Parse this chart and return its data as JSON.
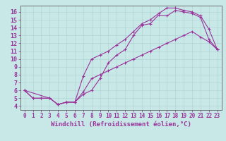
{
  "title": "",
  "xlabel": "Windchill (Refroidissement éolien,°C)",
  "background_color": "#c8e8e8",
  "line_color": "#993399",
  "xlim": [
    -0.5,
    23.5
  ],
  "ylim": [
    3.5,
    16.8
  ],
  "xticks": [
    0,
    1,
    2,
    3,
    4,
    5,
    6,
    7,
    8,
    9,
    10,
    11,
    12,
    13,
    14,
    15,
    16,
    17,
    18,
    19,
    20,
    21,
    22,
    23
  ],
  "yticks": [
    4,
    5,
    6,
    7,
    8,
    9,
    10,
    11,
    12,
    13,
    14,
    15,
    16
  ],
  "curve1_x": [
    0,
    1,
    2,
    3,
    4,
    5,
    6,
    7,
    8,
    9,
    10,
    11,
    12,
    13,
    14,
    15,
    16,
    17,
    18,
    19,
    20,
    21,
    22,
    23
  ],
  "curve1_y": [
    6.0,
    5.0,
    5.0,
    5.0,
    4.2,
    4.5,
    4.5,
    5.5,
    6.0,
    7.5,
    9.5,
    10.5,
    11.2,
    13.0,
    14.3,
    14.5,
    15.6,
    15.5,
    16.2,
    16.0,
    15.8,
    15.3,
    12.5,
    11.2
  ],
  "curve2_x": [
    0,
    3,
    4,
    5,
    6,
    7,
    8,
    9,
    10,
    11,
    12,
    13,
    14,
    15,
    16,
    17,
    18,
    19,
    20,
    21,
    22,
    23
  ],
  "curve2_y": [
    6.0,
    5.0,
    4.2,
    4.5,
    4.5,
    7.8,
    10.0,
    10.5,
    11.0,
    11.8,
    12.5,
    13.5,
    14.5,
    15.0,
    15.8,
    16.5,
    16.5,
    16.2,
    16.0,
    15.5,
    13.8,
    11.2
  ],
  "curve3_x": [
    0,
    1,
    2,
    3,
    4,
    5,
    6,
    7,
    8,
    9,
    10,
    11,
    12,
    13,
    14,
    15,
    16,
    17,
    18,
    19,
    20,
    21,
    22,
    23
  ],
  "curve3_y": [
    6.0,
    5.0,
    5.0,
    5.0,
    4.2,
    4.5,
    4.5,
    5.8,
    7.5,
    8.0,
    8.5,
    9.0,
    9.5,
    10.0,
    10.5,
    11.0,
    11.5,
    12.0,
    12.5,
    13.0,
    13.5,
    12.8,
    12.2,
    11.2
  ],
  "marker": "+",
  "markersize": 3.5,
  "linewidth": 0.8,
  "tick_labelsize": 5.5,
  "xlabel_fontsize": 6.5,
  "grid_color": "#aacfcf",
  "spine_color": "#444444"
}
